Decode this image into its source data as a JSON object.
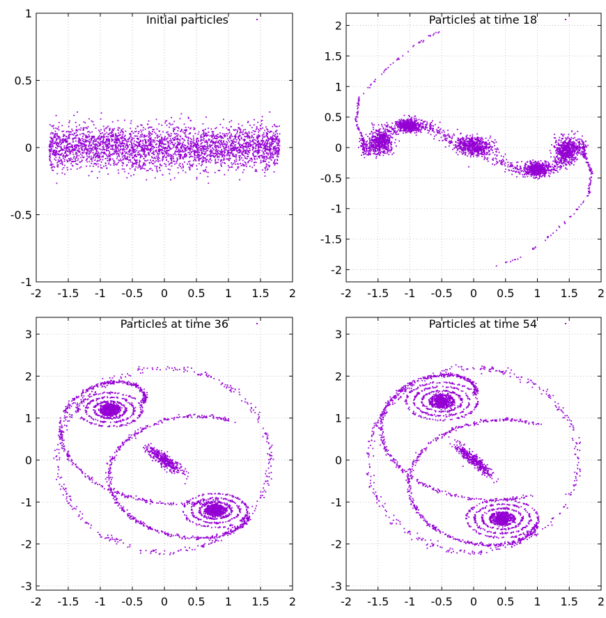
{
  "chart_data": [
    {
      "type": "scatter",
      "title": "Initial particles",
      "xlim": [
        -2,
        2
      ],
      "ylim": [
        -1,
        1
      ],
      "xticks": [
        "-2",
        "-1.5",
        "-1",
        "-0.5",
        "0",
        "0.5",
        "1",
        "1.5",
        "2"
      ],
      "xtick_values": [
        -2,
        -1.5,
        -1,
        -0.5,
        0,
        0.5,
        1,
        1.5,
        2
      ],
      "yticks": [
        "-1",
        "-0.5",
        "0",
        "0.5",
        "1"
      ],
      "ytick_values": [
        -1,
        -0.5,
        0,
        0.5,
        1
      ],
      "grid": true,
      "legend": "top-right",
      "color": "#9400D3",
      "shape": "band",
      "band": {
        "x_range": [
          -1.8,
          1.8
        ],
        "y_center": 0,
        "y_spread": 0.08,
        "y_max_abs": 0.27
      }
    },
    {
      "type": "scatter",
      "title": "Particles at time 18",
      "xlim": [
        -2,
        2
      ],
      "ylim": [
        -2.2,
        2.2
      ],
      "xticks": [
        "-2",
        "-1.5",
        "-1",
        "-0.5",
        "0",
        "0.5",
        "1",
        "1.5",
        "2"
      ],
      "xtick_values": [
        -2,
        -1.5,
        -1,
        -0.5,
        0,
        0.5,
        1,
        1.5,
        2
      ],
      "yticks": [
        "-2",
        "-1.5",
        "-1",
        "-0.5",
        "0",
        "0.5",
        "1",
        "1.5",
        "2"
      ],
      "ytick_values": [
        -2,
        -1.5,
        -1,
        -0.5,
        0,
        0.5,
        1,
        1.5,
        2
      ],
      "grid": true,
      "legend": "top-right",
      "color": "#9400D3",
      "shape": "s-curve",
      "curve": [
        [
          -1.75,
          0.1
        ],
        [
          -1.7,
          -0.05
        ],
        [
          -1.5,
          0.05
        ],
        [
          -1.3,
          0.3
        ],
        [
          -1.0,
          0.42
        ],
        [
          -0.7,
          0.35
        ],
        [
          -0.4,
          0.15
        ],
        [
          -0.1,
          0.05
        ],
        [
          0.1,
          -0.05
        ],
        [
          0.4,
          -0.2
        ],
        [
          0.7,
          -0.38
        ],
        [
          1.0,
          -0.42
        ],
        [
          1.3,
          -0.3
        ],
        [
          1.5,
          -0.05
        ],
        [
          1.7,
          0.05
        ],
        [
          1.75,
          -0.1
        ]
      ],
      "blobs": [
        [
          0,
          0.03,
          0.22,
          0.12
        ],
        [
          -1.45,
          0.1,
          0.15,
          0.18
        ],
        [
          1.45,
          -0.05,
          0.15,
          0.18
        ],
        [
          -1.0,
          0.35,
          0.15,
          0.08
        ],
        [
          1.0,
          -0.35,
          0.15,
          0.08
        ]
      ],
      "arms": [
        [
          [
            -1.72,
            0.1
          ],
          [
            -1.85,
            0.4
          ],
          [
            -1.8,
            0.8
          ],
          [
            -1.55,
            1.1
          ],
          [
            -1.3,
            1.35
          ],
          [
            -1.0,
            1.62
          ],
          [
            -0.7,
            1.82
          ],
          [
            -0.5,
            1.92
          ]
        ],
        [
          [
            1.72,
            -0.1
          ],
          [
            1.85,
            -0.4
          ],
          [
            1.8,
            -0.8
          ],
          [
            1.55,
            -1.1
          ],
          [
            1.3,
            -1.35
          ],
          [
            1.0,
            -1.62
          ],
          [
            0.7,
            -1.82
          ],
          [
            0.3,
            -1.97
          ]
        ]
      ]
    },
    {
      "type": "scatter",
      "title": "Particles at time 36",
      "xlim": [
        -2,
        2
      ],
      "ylim": [
        -3.1,
        3.4
      ],
      "xticks": [
        "-2",
        "-1.5",
        "-1",
        "-0.5",
        "0",
        "0.5",
        "1",
        "1.5",
        "2"
      ],
      "xtick_values": [
        -2,
        -1.5,
        -1,
        -0.5,
        0,
        0.5,
        1,
        1.5,
        2
      ],
      "yticks": [
        "-3",
        "-2",
        "-1",
        "0",
        "1",
        "2",
        "3"
      ],
      "ytick_values": [
        -3,
        -2,
        -1,
        0,
        1,
        2,
        3
      ],
      "grid": true,
      "legend": "top-right",
      "color": "#9400D3",
      "shape": "vortex-pair",
      "vortices": [
        [
          -0.85,
          1.2
        ],
        [
          0.8,
          -1.2
        ]
      ],
      "ring_radii": [
        0.12,
        0.2,
        0.3,
        0.4
      ],
      "center_blob": [
        0,
        0,
        0.12,
        0.32
      ]
    },
    {
      "type": "scatter",
      "title": "Particles at time 54",
      "xlim": [
        -2,
        2
      ],
      "ylim": [
        -3.1,
        3.4
      ],
      "xticks": [
        "-2",
        "-1.5",
        "-1",
        "-0.5",
        "0",
        "0.5",
        "1",
        "1.5",
        "2"
      ],
      "xtick_values": [
        -2,
        -1.5,
        -1,
        -0.5,
        0,
        0.5,
        1,
        1.5,
        2
      ],
      "yticks": [
        "-3",
        "-2",
        "-1",
        "0",
        "1",
        "2",
        "3"
      ],
      "ytick_values": [
        -3,
        -2,
        -1,
        0,
        1,
        2,
        3
      ],
      "grid": true,
      "legend": "top-right",
      "color": "#9400D3",
      "shape": "vortex-pair",
      "vortices": [
        [
          -0.5,
          1.4
        ],
        [
          0.45,
          -1.4
        ]
      ],
      "ring_radii": [
        0.15,
        0.25,
        0.35,
        0.45
      ],
      "center_blob": [
        0,
        0,
        0.1,
        0.35
      ]
    }
  ]
}
